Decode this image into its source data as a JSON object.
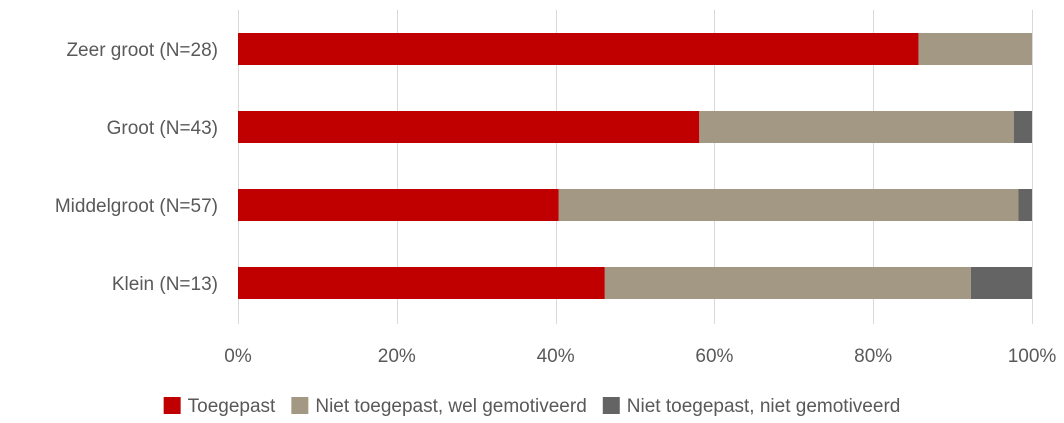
{
  "chart_data": {
    "type": "bar",
    "orientation": "horizontal",
    "stacked": true,
    "categories": [
      "Zeer groot (N=28)",
      "Groot (N=43)",
      "Middelgroot (N=57)",
      "Klein (N=13)"
    ],
    "series": [
      {
        "name": "Toegepast",
        "color": "#c00000",
        "values": [
          85.7,
          58.1,
          40.4,
          46.2
        ]
      },
      {
        "name": "Niet toegepast, wel gemotiveerd",
        "color": "#a39884",
        "values": [
          14.3,
          39.6,
          57.9,
          46.1
        ]
      },
      {
        "name": "Niet toegepast, niet gemotiveerd",
        "color": "#646464",
        "values": [
          0.0,
          2.3,
          1.7,
          7.7
        ]
      }
    ],
    "xlim": [
      0,
      100
    ],
    "x_ticks": [
      0,
      20,
      40,
      60,
      80,
      100
    ],
    "x_tick_labels": [
      "0%",
      "20%",
      "40%",
      "60%",
      "80%",
      "100%"
    ],
    "grid": "vertical",
    "legend_position": "bottom"
  }
}
